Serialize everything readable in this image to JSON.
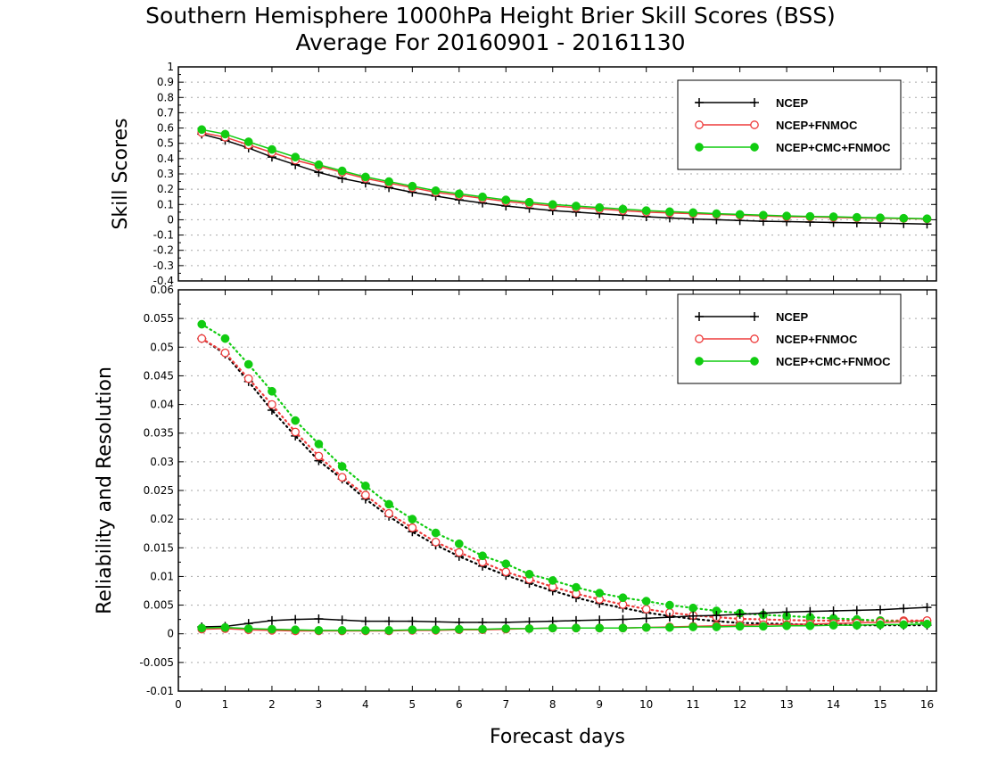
{
  "title": "Southern Hemisphere 1000hPa Height Brier Skill Scores (BSS)",
  "subtitle": "Average For 20160901 - 20161130",
  "xlabel": "Forecast days",
  "colors": {
    "NCEP": "#000000",
    "NCEP+FNMOC": "#ee3b3b",
    "NCEP+CMC+FNMOC": "#11cc11"
  },
  "chart_data": [
    {
      "type": "line",
      "panel": "top",
      "ylabel": "Skill Scores",
      "xlim": [
        0,
        16.2
      ],
      "ylim": [
        -0.4,
        1
      ],
      "x_ticks": [
        0,
        1,
        2,
        3,
        4,
        5,
        6,
        7,
        8,
        9,
        10,
        11,
        12,
        13,
        14,
        15,
        16
      ],
      "y_ticks": [
        -0.4,
        -0.3,
        -0.2,
        -0.1,
        0,
        0.1,
        0.2,
        0.3,
        0.4,
        0.5,
        0.6,
        0.7,
        0.8,
        0.9,
        1
      ],
      "y_tick_labels": [
        "-0.4",
        "-0.3",
        "-0.2",
        "-0.1",
        "0",
        "0.1",
        "0.2",
        "0.3",
        "0.4",
        "0.5",
        "0.6",
        "0.7",
        "0.8",
        "0.9",
        "1"
      ],
      "grid": true,
      "legend_position": "top-right",
      "x": [
        0.5,
        1,
        1.5,
        2,
        2.5,
        3,
        3.5,
        4,
        4.5,
        5,
        5.5,
        6,
        6.5,
        7,
        7.5,
        8,
        8.5,
        9,
        9.5,
        10,
        10.5,
        11,
        11.5,
        12,
        12.5,
        13,
        13.5,
        14,
        14.5,
        15,
        15.5,
        16
      ],
      "series": [
        {
          "name": "NCEP",
          "marker": "plus",
          "style": "solid",
          "values": [
            0.56,
            0.52,
            0.47,
            0.41,
            0.36,
            0.31,
            0.27,
            0.24,
            0.21,
            0.18,
            0.155,
            0.13,
            0.11,
            0.09,
            0.075,
            0.06,
            0.05,
            0.04,
            0.03,
            0.02,
            0.012,
            0.005,
            0,
            -0.005,
            -0.01,
            -0.012,
            -0.015,
            -0.018,
            -0.02,
            -0.022,
            -0.025,
            -0.028
          ]
        },
        {
          "name": "NCEP+FNMOC",
          "marker": "open-circle",
          "style": "solid",
          "values": [
            0.57,
            0.54,
            0.49,
            0.44,
            0.39,
            0.35,
            0.31,
            0.27,
            0.24,
            0.21,
            0.18,
            0.16,
            0.14,
            0.12,
            0.105,
            0.09,
            0.08,
            0.07,
            0.06,
            0.05,
            0.045,
            0.04,
            0.035,
            0.03,
            0.025,
            0.02,
            0.018,
            0.015,
            0.012,
            0.01,
            0.008,
            0.005
          ]
        },
        {
          "name": "NCEP+CMC+FNMOC",
          "marker": "filled-circle",
          "style": "solid",
          "values": [
            0.59,
            0.56,
            0.51,
            0.46,
            0.41,
            0.36,
            0.32,
            0.28,
            0.25,
            0.22,
            0.19,
            0.17,
            0.15,
            0.13,
            0.115,
            0.1,
            0.09,
            0.08,
            0.07,
            0.06,
            0.053,
            0.047,
            0.04,
            0.035,
            0.03,
            0.025,
            0.022,
            0.02,
            0.016,
            0.013,
            0.01,
            0.007
          ]
        }
      ]
    },
    {
      "type": "line",
      "panel": "bottom",
      "ylabel": "Reliability and Resolution",
      "xlim": [
        0,
        16.2
      ],
      "ylim": [
        -0.01,
        0.06
      ],
      "x_ticks": [
        0,
        1,
        2,
        3,
        4,
        5,
        6,
        7,
        8,
        9,
        10,
        11,
        12,
        13,
        14,
        15,
        16
      ],
      "x_tick_labels": [
        "0",
        "1",
        "2",
        "3",
        "4",
        "5",
        "6",
        "7",
        "8",
        "9",
        "10",
        "11",
        "12",
        "13",
        "14",
        "15",
        "16"
      ],
      "y_ticks": [
        -0.01,
        -0.005,
        0,
        0.005,
        0.01,
        0.015,
        0.02,
        0.025,
        0.03,
        0.035,
        0.04,
        0.045,
        0.05,
        0.055,
        0.06
      ],
      "y_tick_labels": [
        "-0.01",
        "-0.005",
        "0",
        "0.005",
        "0.01",
        "0.015",
        "0.02",
        "0.025",
        "0.03",
        "0.035",
        "0.04",
        "0.045",
        "0.05",
        "0.055",
        "0.06"
      ],
      "grid": true,
      "legend_position": "top-right",
      "x": [
        0.5,
        1,
        1.5,
        2,
        2.5,
        3,
        3.5,
        4,
        4.5,
        5,
        5.5,
        6,
        6.5,
        7,
        7.5,
        8,
        8.5,
        9,
        9.5,
        10,
        10.5,
        11,
        11.5,
        12,
        12.5,
        13,
        13.5,
        14,
        14.5,
        15,
        15.5,
        16
      ],
      "series": [
        {
          "name": "NCEP",
          "metric": "resolution",
          "marker": "plus",
          "style": "dotted",
          "values": [
            0.0515,
            0.0488,
            0.044,
            0.039,
            0.0345,
            0.0302,
            0.027,
            0.0235,
            0.0205,
            0.0178,
            0.0155,
            0.0135,
            0.0118,
            0.0102,
            0.0088,
            0.0075,
            0.0063,
            0.0053,
            0.0045,
            0.0037,
            0.0031,
            0.0026,
            0.0022,
            0.0019,
            0.0018,
            0.0017,
            0.0016,
            0.0016,
            0.0015,
            0.0015,
            0.0015,
            0.0015
          ]
        },
        {
          "name": "NCEP+FNMOC",
          "metric": "resolution",
          "marker": "open-circle",
          "style": "dotted",
          "values": [
            0.0515,
            0.049,
            0.0445,
            0.04,
            0.0352,
            0.031,
            0.0273,
            0.0242,
            0.021,
            0.0185,
            0.016,
            0.0142,
            0.0125,
            0.0108,
            0.0095,
            0.0082,
            0.007,
            0.006,
            0.0051,
            0.0043,
            0.0037,
            0.0032,
            0.0029,
            0.0026,
            0.0025,
            0.0024,
            0.0023,
            0.0023,
            0.0023,
            0.0023,
            0.0023,
            0.0023
          ]
        },
        {
          "name": "NCEP+CMC+FNMOC",
          "metric": "resolution",
          "marker": "filled-circle",
          "style": "dotted",
          "values": [
            0.054,
            0.0515,
            0.047,
            0.0423,
            0.0372,
            0.0331,
            0.0292,
            0.0258,
            0.0226,
            0.02,
            0.0176,
            0.0157,
            0.0136,
            0.0122,
            0.0104,
            0.0093,
            0.0081,
            0.0071,
            0.0063,
            0.0057,
            0.005,
            0.0045,
            0.004,
            0.0036,
            0.0033,
            0.0031,
            0.0029,
            0.0027,
            0.0025,
            0.0023,
            0.0021,
            0.0019
          ]
        },
        {
          "name": "NCEP",
          "metric": "reliability",
          "marker": "plus",
          "style": "solid",
          "values": [
            0.0012,
            0.0013,
            0.0018,
            0.0023,
            0.0025,
            0.0026,
            0.0024,
            0.0022,
            0.0022,
            0.0022,
            0.0021,
            0.002,
            0.002,
            0.002,
            0.0021,
            0.0022,
            0.0023,
            0.0024,
            0.0025,
            0.0027,
            0.0029,
            0.0031,
            0.0032,
            0.0034,
            0.0036,
            0.0038,
            0.0039,
            0.004,
            0.0041,
            0.0042,
            0.0044,
            0.0046
          ]
        },
        {
          "name": "NCEP+FNMOC",
          "metric": "reliability",
          "marker": "open-circle",
          "style": "solid",
          "values": [
            0.0008,
            0.0009,
            0.0007,
            0.0006,
            0.0005,
            0.0005,
            0.0005,
            0.0005,
            0.0005,
            0.0006,
            0.0006,
            0.0007,
            0.0007,
            0.0008,
            0.0009,
            0.001,
            0.001,
            0.001,
            0.001,
            0.0011,
            0.0012,
            0.0013,
            0.0014,
            0.0015,
            0.0016,
            0.0016,
            0.0017,
            0.0018,
            0.0019,
            0.002,
            0.0021,
            0.0023
          ]
        },
        {
          "name": "NCEP+CMC+FNMOC",
          "metric": "reliability",
          "marker": "filled-circle",
          "style": "solid",
          "values": [
            0.001,
            0.0011,
            0.0009,
            0.0008,
            0.0007,
            0.0006,
            0.0006,
            0.0006,
            0.0006,
            0.0007,
            0.0007,
            0.0008,
            0.0008,
            0.0009,
            0.0009,
            0.001,
            0.001,
            0.001,
            0.001,
            0.0011,
            0.0011,
            0.0012,
            0.0012,
            0.0013,
            0.0013,
            0.0014,
            0.0014,
            0.0015,
            0.0015,
            0.0016,
            0.0016,
            0.0017
          ]
        }
      ]
    }
  ]
}
